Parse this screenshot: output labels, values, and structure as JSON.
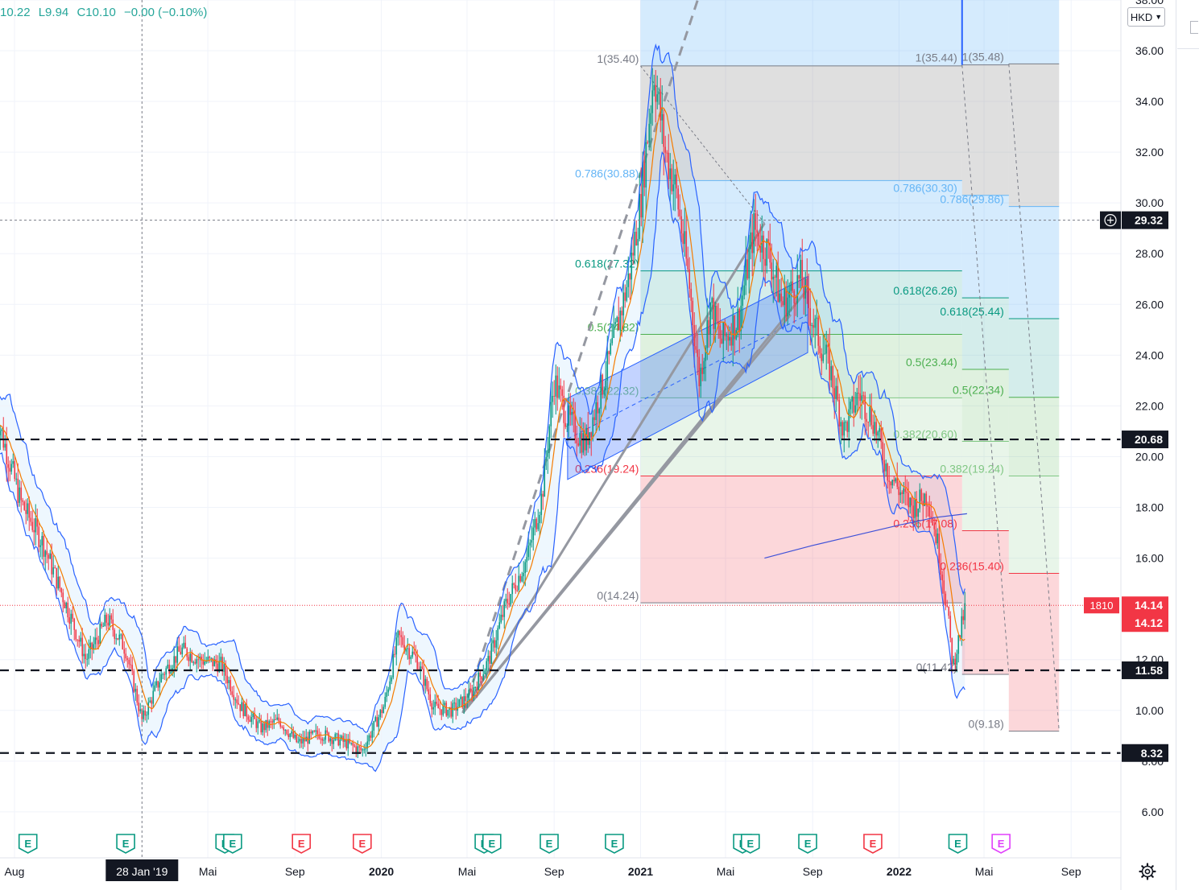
{
  "ohlc": {
    "h": "10.22",
    "l": "L9.94",
    "c": "C10.10",
    "change": "−0.00 (−0.10%)"
  },
  "currency": "HKD",
  "y_axis": {
    "min": 5,
    "max": 38,
    "ticks": [
      {
        "v": 38,
        "label": "38.00"
      },
      {
        "v": 36,
        "label": "36.00"
      },
      {
        "v": 34,
        "label": "34.00"
      },
      {
        "v": 32,
        "label": "32.00"
      },
      {
        "v": 30,
        "label": "30.00"
      },
      {
        "v": 28,
        "label": "28.00"
      },
      {
        "v": 26,
        "label": "26.00"
      },
      {
        "v": 24,
        "label": "24.00"
      },
      {
        "v": 22,
        "label": "22.00"
      },
      {
        "v": 20,
        "label": "20.00"
      },
      {
        "v": 18,
        "label": "18.00"
      },
      {
        "v": 16,
        "label": "16.00"
      },
      {
        "v": 12,
        "label": "12.00"
      },
      {
        "v": 10,
        "label": "10.00"
      },
      {
        "v": 8,
        "label": "8.00"
      },
      {
        "v": 6,
        "label": "6.00"
      }
    ]
  },
  "x_axis": {
    "ticks": [
      {
        "date": "2018-08-01",
        "label": "Aug",
        "bold": false
      },
      {
        "date": "2019-05-01",
        "label": "Mai",
        "bold": false
      },
      {
        "date": "2019-09-01",
        "label": "Sep",
        "bold": false
      },
      {
        "date": "2020-01-01",
        "label": "2020",
        "bold": true
      },
      {
        "date": "2020-05-01",
        "label": "Mai",
        "bold": false
      },
      {
        "date": "2020-09-01",
        "label": "Sep",
        "bold": false
      },
      {
        "date": "2021-01-01",
        "label": "2021",
        "bold": true
      },
      {
        "date": "2021-05-01",
        "label": "Mai",
        "bold": false
      },
      {
        "date": "2021-09-01",
        "label": "Sep",
        "bold": false
      },
      {
        "date": "2022-01-01",
        "label": "2022",
        "bold": true
      },
      {
        "date": "2022-05-01",
        "label": "Mai",
        "bold": false
      },
      {
        "date": "2022-09-01",
        "label": "Sep",
        "bold": false
      }
    ],
    "crosshair_date": {
      "date": "2019-01-28",
      "label": "28 Jan '19"
    }
  },
  "chart_data": {
    "type": "candlestick",
    "series": [
      {
        "name": "price",
        "points": [
          [
            "2018-07-05",
            21.8
          ],
          [
            "2018-08-10",
            18.2
          ],
          [
            "2018-09-10",
            16.6
          ],
          [
            "2018-10-15",
            14.0
          ],
          [
            "2018-11-10",
            12.0
          ],
          [
            "2018-12-10",
            13.6
          ],
          [
            "2019-01-05",
            12.4
          ],
          [
            "2019-01-28",
            9.6
          ],
          [
            "2019-02-25",
            11.4
          ],
          [
            "2019-03-25",
            12.4
          ],
          [
            "2019-04-20",
            12.0
          ],
          [
            "2019-05-20",
            11.8
          ],
          [
            "2019-06-15",
            10.2
          ],
          [
            "2019-07-15",
            9.3
          ],
          [
            "2019-08-10",
            9.6
          ],
          [
            "2019-09-05",
            8.7
          ],
          [
            "2019-10-05",
            9.1
          ],
          [
            "2019-11-05",
            8.8
          ],
          [
            "2019-12-05",
            8.4
          ],
          [
            "2020-01-05",
            10.2
          ],
          [
            "2020-01-25",
            12.9
          ],
          [
            "2020-02-20",
            12.0
          ],
          [
            "2020-03-15",
            10.1
          ],
          [
            "2020-04-10",
            10.0
          ],
          [
            "2020-05-05",
            10.6
          ],
          [
            "2020-06-01",
            12.0
          ],
          [
            "2020-06-25",
            14.2
          ],
          [
            "2020-07-25",
            16.0
          ],
          [
            "2020-08-15",
            18.5
          ],
          [
            "2020-09-01",
            23.0
          ],
          [
            "2020-09-20",
            21.5
          ],
          [
            "2020-10-15",
            20.5
          ],
          [
            "2020-11-15",
            23.5
          ],
          [
            "2020-12-15",
            27.0
          ],
          [
            "2021-01-01",
            30.0
          ],
          [
            "2021-01-20",
            35.2
          ],
          [
            "2021-02-05",
            32.0
          ],
          [
            "2021-02-20",
            30.5
          ],
          [
            "2021-03-10",
            27.0
          ],
          [
            "2021-03-25",
            23.0
          ],
          [
            "2021-04-10",
            26.0
          ],
          [
            "2021-04-25",
            24.5
          ],
          [
            "2021-05-20",
            25.5
          ],
          [
            "2021-06-10",
            29.0
          ],
          [
            "2021-07-01",
            28.0
          ],
          [
            "2021-07-20",
            26.0
          ],
          [
            "2021-08-15",
            27.0
          ],
          [
            "2021-09-05",
            25.0
          ],
          [
            "2021-09-25",
            23.5
          ],
          [
            "2021-10-15",
            21.0
          ],
          [
            "2021-11-05",
            22.5
          ],
          [
            "2021-11-25",
            21.5
          ],
          [
            "2021-12-15",
            19.5
          ],
          [
            "2022-01-05",
            18.5
          ],
          [
            "2022-01-20",
            18.0
          ],
          [
            "2022-02-10",
            18.5
          ],
          [
            "2022-02-25",
            16.5
          ],
          [
            "2022-03-10",
            14.0
          ],
          [
            "2022-03-18",
            11.7
          ],
          [
            "2022-03-28",
            13.0
          ],
          [
            "2022-04-05",
            14.14
          ]
        ]
      },
      {
        "name": "sma200",
        "color": "#3f51d8",
        "points": [
          [
            "2021-06-25",
            16.0
          ],
          [
            "2021-09-01",
            16.5
          ],
          [
            "2021-11-01",
            16.9
          ],
          [
            "2022-01-01",
            17.3
          ],
          [
            "2022-02-20",
            17.6
          ],
          [
            "2022-04-07",
            17.75
          ]
        ]
      }
    ],
    "price_lines": [
      {
        "value": 29.32,
        "label": "29.32",
        "style": "dotted"
      },
      {
        "value": 20.68,
        "label": "20.68",
        "style": "dashed"
      },
      {
        "value": 11.58,
        "label": "11.58",
        "style": "dashed"
      },
      {
        "value": 8.32,
        "label": "8.32",
        "style": "dashed"
      }
    ],
    "last_price": {
      "symbol": "1810",
      "value": 14.14,
      "label": "14.14",
      "secondary": "14.12"
    },
    "crosshair_price": {
      "value": 29.32
    },
    "fib_retracements": [
      {
        "start": "2021-01-01",
        "end": "2022-03-31",
        "levels": [
          {
            "ratio": "1",
            "price": 35.4,
            "label": "1(35.40)"
          },
          {
            "ratio": "0.786",
            "price": 30.88,
            "label": "0.786(30.88)"
          },
          {
            "ratio": "0.618",
            "price": 27.32,
            "label": "0.618(27.32)"
          },
          {
            "ratio": "0.5",
            "price": 24.82,
            "label": "0.5(24.82)"
          },
          {
            "ratio": "0.382",
            "price": 22.32,
            "label": "0.382(22.32)"
          },
          {
            "ratio": "0.236",
            "price": 19.24,
            "label": "0.236(19.24)"
          },
          {
            "ratio": "0",
            "price": 14.24,
            "label": "0(14.24)"
          }
        ]
      },
      {
        "start": "2022-03-31",
        "end": "2022-06-05",
        "levels": [
          {
            "ratio": "1",
            "price": 35.44,
            "label": "1(35.44)"
          },
          {
            "ratio": "0.786",
            "price": 30.3,
            "label": "0.786(30.30)"
          },
          {
            "ratio": "0.618",
            "price": 26.26,
            "label": "0.618(26.26)"
          },
          {
            "ratio": "0.5",
            "price": 23.44,
            "label": "0.5(23.44)"
          },
          {
            "ratio": "0.382",
            "price": 20.6,
            "label": "0.382(20.60)"
          },
          {
            "ratio": "0.236",
            "price": 17.08,
            "label": "0.236(17.08)"
          },
          {
            "ratio": "0",
            "price": 11.42,
            "label": "0(11.42)"
          }
        ]
      },
      {
        "start": "2022-06-05",
        "end": "2022-08-15",
        "levels": [
          {
            "ratio": "1",
            "price": 35.48,
            "label": "1(35.48)"
          },
          {
            "ratio": "0.786",
            "price": 29.86,
            "label": "0.786(29.86)"
          },
          {
            "ratio": "0.618",
            "price": 25.44,
            "label": "0.618(25.44)"
          },
          {
            "ratio": "0.5",
            "price": 22.34,
            "label": "0.5(22.34)"
          },
          {
            "ratio": "0.382",
            "price": 19.24,
            "label": "0.382(19.24)"
          },
          {
            "ratio": "0.236",
            "price": 15.4,
            "label": "0.236(15.40)"
          },
          {
            "ratio": "0",
            "price": 9.18,
            "label": "0(9.18)"
          }
        ]
      }
    ],
    "trend_channel": {
      "upper": [
        [
          "2020-09-20",
          22.3
        ],
        [
          "2021-08-25",
          27.1
        ]
      ],
      "lower": [
        [
          "2020-09-20",
          19.1
        ],
        [
          "2021-08-25",
          24.1
        ]
      ]
    },
    "trend_lines": [
      {
        "from": [
          "2020-04-25",
          9.9
        ],
        "to": [
          "2021-06-25",
          29.2
        ]
      },
      {
        "from": [
          "2020-04-25",
          9.9
        ],
        "to": [
          "2021-08-01",
          25.6
        ]
      },
      {
        "from": [
          "2020-04-25",
          9.9
        ],
        "to": [
          "2021-08-25",
          26.6
        ]
      }
    ],
    "earnings_markers": [
      {
        "date": "2018-08-20",
        "type": "E",
        "color": "#089981"
      },
      {
        "date": "2019-01-05",
        "type": "E",
        "color": "#089981"
      },
      {
        "date": "2019-05-25",
        "type": "E",
        "color": "#089981"
      },
      {
        "date": "2019-06-05",
        "type": "E",
        "color": "#089981"
      },
      {
        "date": "2019-09-10",
        "type": "E",
        "color": "#f23645"
      },
      {
        "date": "2019-12-05",
        "type": "E",
        "color": "#f23645"
      },
      {
        "date": "2020-05-25",
        "type": "E",
        "color": "#089981"
      },
      {
        "date": "2020-06-05",
        "type": "E",
        "color": "#089981"
      },
      {
        "date": "2020-08-25",
        "type": "E",
        "color": "#089981"
      },
      {
        "date": "2020-11-25",
        "type": "E",
        "color": "#089981"
      },
      {
        "date": "2021-05-25",
        "type": "E",
        "color": "#089981"
      },
      {
        "date": "2021-06-05",
        "type": "E",
        "color": "#089981"
      },
      {
        "date": "2021-08-25",
        "type": "E",
        "color": "#089981"
      },
      {
        "date": "2021-11-25",
        "type": "E",
        "color": "#f23645"
      },
      {
        "date": "2022-03-25",
        "type": "E",
        "color": "#089981"
      },
      {
        "date": "2022-05-25",
        "type": "E",
        "color": "#e040fb"
      }
    ]
  }
}
